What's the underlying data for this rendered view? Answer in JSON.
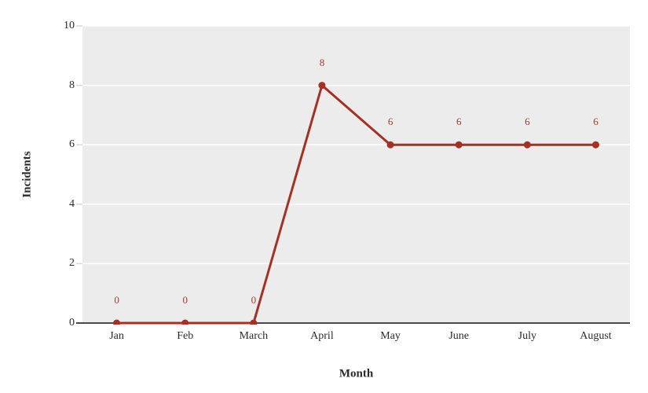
{
  "chart_data": {
    "type": "line",
    "categories": [
      "Jan",
      "Feb",
      "March",
      "April",
      "May",
      "June",
      "July",
      "August"
    ],
    "series": [
      {
        "name": "Incidents",
        "values": [
          0,
          0,
          0,
          8,
          6,
          6,
          6,
          6
        ]
      }
    ],
    "data_labels": [
      "0",
      "0",
      "0",
      "8",
      "6",
      "6",
      "6",
      "6"
    ],
    "title": "",
    "xlabel": "Month",
    "ylabel": "Incidents",
    "ylim": [
      0,
      10
    ],
    "yticks": [
      0,
      2,
      4,
      6,
      8,
      10
    ],
    "grid": "horizontal-white-lines-at-major-ticks",
    "legend": "none",
    "colors": {
      "line": "#a53024",
      "marker": "#a53024",
      "data_label": "#a53a2a",
      "plot_background": "#ececec",
      "gridline": "#ffffff",
      "axis_line": "#4a4a4a",
      "tick_mark": "#d9d9d9",
      "text": "#2b2b2b"
    }
  }
}
